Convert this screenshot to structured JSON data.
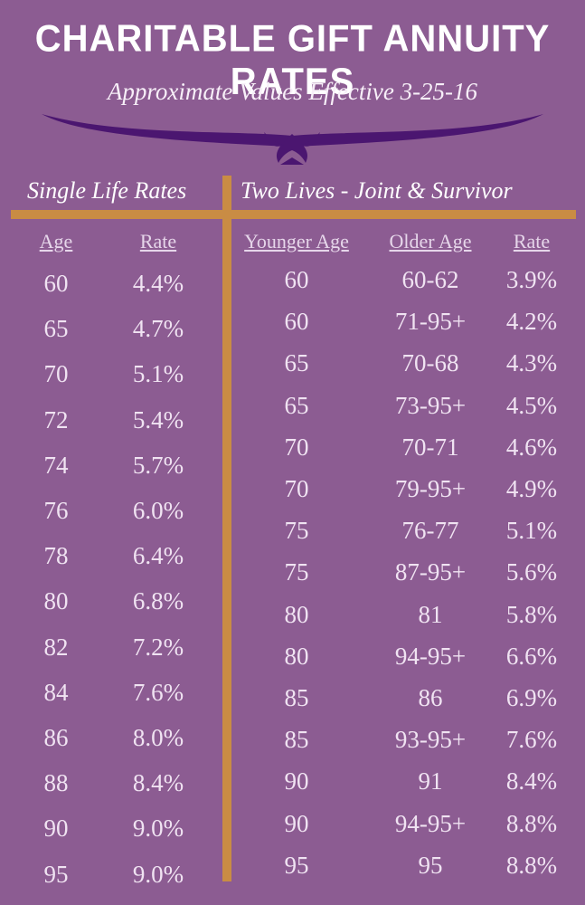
{
  "title": "Charitable Gift Annuity Rates",
  "subtitle": "Approximate Values Effective 3-25-16",
  "colors": {
    "background": "#8c5c92",
    "accent_bar": "#c98c44",
    "ornament": "#4b1670"
  },
  "single": {
    "heading": "Single Life Rates",
    "col_age": "Age",
    "col_rate": "Rate",
    "rows": [
      {
        "age": "60",
        "rate": "4.4%"
      },
      {
        "age": "65",
        "rate": "4.7%"
      },
      {
        "age": "70",
        "rate": "5.1%"
      },
      {
        "age": "72",
        "rate": "5.4%"
      },
      {
        "age": "74",
        "rate": "5.7%"
      },
      {
        "age": "76",
        "rate": "6.0%"
      },
      {
        "age": "78",
        "rate": "6.4%"
      },
      {
        "age": "80",
        "rate": "6.8%"
      },
      {
        "age": "82",
        "rate": "7.2%"
      },
      {
        "age": "84",
        "rate": "7.6%"
      },
      {
        "age": "86",
        "rate": "8.0%"
      },
      {
        "age": "88",
        "rate": "8.4%"
      },
      {
        "age": "90",
        "rate": "9.0%"
      },
      {
        "age": "95",
        "rate": "9.0%"
      }
    ]
  },
  "joint": {
    "heading": "Two Lives - Joint & Survivor",
    "col_younger": "Younger Age",
    "col_older": "Older Age",
    "col_rate": "Rate",
    "rows": [
      {
        "younger": "60",
        "older": "60-62",
        "rate": "3.9%"
      },
      {
        "younger": "60",
        "older": "71-95+",
        "rate": "4.2%"
      },
      {
        "younger": "65",
        "older": "70-68",
        "rate": "4.3%"
      },
      {
        "younger": "65",
        "older": "73-95+",
        "rate": "4.5%"
      },
      {
        "younger": "70",
        "older": "70-71",
        "rate": "4.6%"
      },
      {
        "younger": "70",
        "older": "79-95+",
        "rate": "4.9%"
      },
      {
        "younger": "75",
        "older": "76-77",
        "rate": "5.1%"
      },
      {
        "younger": "75",
        "older": "87-95+",
        "rate": "5.6%"
      },
      {
        "younger": "80",
        "older": "81",
        "rate": "5.8%"
      },
      {
        "younger": "80",
        "older": "94-95+",
        "rate": "6.6%"
      },
      {
        "younger": "85",
        "older": "86",
        "rate": "6.9%"
      },
      {
        "younger": "85",
        "older": "93-95+",
        "rate": "7.6%"
      },
      {
        "younger": "90",
        "older": "91",
        "rate": "8.4%"
      },
      {
        "younger": "90",
        "older": "94-95+",
        "rate": "8.8%"
      },
      {
        "younger": "95",
        "older": "95",
        "rate": "8.8%"
      }
    ]
  }
}
